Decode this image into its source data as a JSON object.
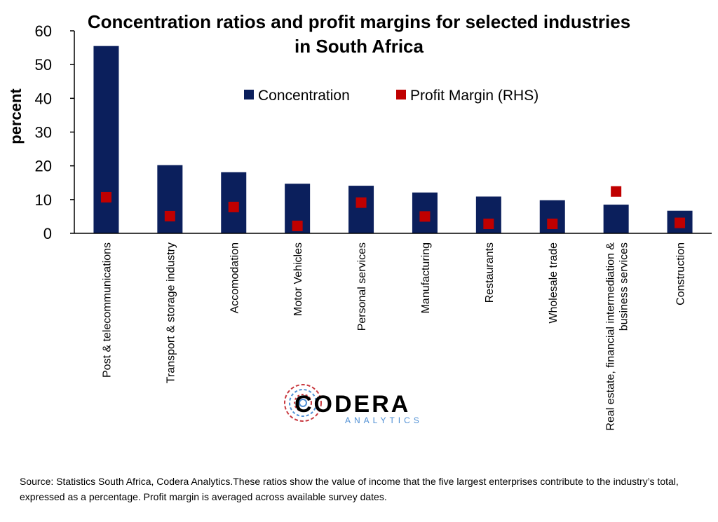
{
  "chart_data": {
    "type": "bar",
    "title": "Concentration ratios and profit margins for selected industries",
    "title_line2": "in South Africa",
    "ylabel": "percent",
    "ylim": [
      0,
      60
    ],
    "yticks": [
      0,
      10,
      20,
      30,
      40,
      50,
      60
    ],
    "categories": [
      "Post & telecommunications",
      "Transport & storage industry",
      "Accomodation",
      "Motor Vehicles",
      "Personal services",
      "Manufacturing",
      "Restaurants",
      "Wholesale trade",
      "Real estate, financial intermediation & business services",
      "Construction"
    ],
    "series": [
      {
        "name": "Concentration",
        "kind": "bar",
        "color": "#0b1f5c",
        "values": [
          55.5,
          20.2,
          18.1,
          14.7,
          14.1,
          12.1,
          10.9,
          9.8,
          8.5,
          6.7
        ]
      },
      {
        "name": "Profit Margin (RHS)",
        "kind": "marker",
        "color": "#c00000",
        "values": [
          10.7,
          5.1,
          7.8,
          2.2,
          9.1,
          5.0,
          2.8,
          2.8,
          12.4,
          3.1
        ]
      }
    ],
    "legend_position": "top-center",
    "grid": false
  },
  "logo": {
    "main": "CODERA",
    "sub": "ANALYTICS"
  },
  "source_note": "Source: Statistics South Africa, Codera Analytics.These ratios show the value of income that the five largest enterprises contribute to the industry’s total, expressed as a percentage. Profit margin is averaged across available survey dates."
}
